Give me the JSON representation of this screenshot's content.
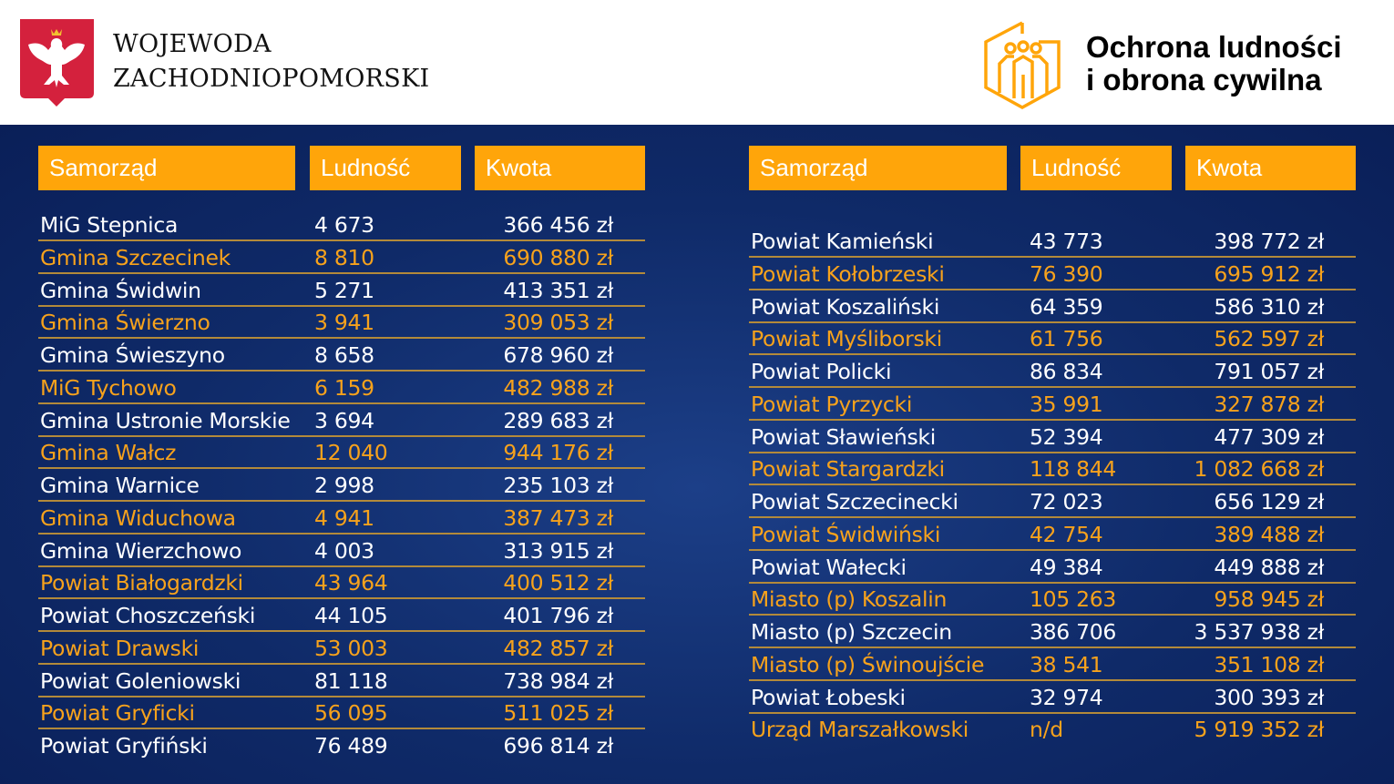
{
  "header": {
    "left_title_line1": "WOJEWODA",
    "left_title_line2": "ZACHODNIOPOMORSKI",
    "right_title_line1": "Ochrona ludności",
    "right_title_line2": "i obrona cywilna"
  },
  "columns": {
    "name": "Samorząd",
    "population": "Ludność",
    "amount": "Kwota"
  },
  "colors": {
    "accent": "#ffa50a",
    "background": "#0f2a68"
  },
  "left_table": [
    [
      "MiG Stepnica",
      "4 673",
      "366 456 zł"
    ],
    [
      "Gmina Szczecinek",
      "8 810",
      "690 880 zł"
    ],
    [
      "Gmina Świdwin",
      "5 271",
      "413 351 zł"
    ],
    [
      "Gmina Świerzno",
      "3 941",
      "309 053 zł"
    ],
    [
      "Gmina Świeszyno",
      "8 658",
      "678 960 zł"
    ],
    [
      "MiG Tychowo",
      "6 159",
      "482 988 zł"
    ],
    [
      "Gmina Ustronie Morskie",
      "3 694",
      "289 683 zł"
    ],
    [
      "Gmina Wałcz",
      "12 040",
      "944 176 zł"
    ],
    [
      "Gmina Warnice",
      "2 998",
      "235 103 zł"
    ],
    [
      "Gmina Widuchowa",
      "4 941",
      "387 473 zł"
    ],
    [
      "Gmina Wierzchowo",
      "4 003",
      "313 915 zł"
    ],
    [
      "Powiat Białogardzki",
      "43 964",
      "400 512 zł"
    ],
    [
      "Powiat Choszczeński",
      "44 105",
      "401 796 zł"
    ],
    [
      "Powiat Drawski",
      "53 003",
      "482 857 zł"
    ],
    [
      "Powiat Goleniowski",
      "81 118",
      "738 984 zł"
    ],
    [
      "Powiat Gryficki",
      "56 095",
      "511 025 zł"
    ],
    [
      "Powiat Gryfiński",
      "76 489",
      "696 814 zł"
    ]
  ],
  "right_table": [
    [
      "Powiat Kamieński",
      "43 773",
      "398 772 zł"
    ],
    [
      "Powiat Kołobrzeski",
      "76 390",
      "695 912 zł"
    ],
    [
      "Powiat Koszaliński",
      "64 359",
      "586 310 zł"
    ],
    [
      "Powiat Myśliborski",
      "61 756",
      "562 597 zł"
    ],
    [
      "Powiat Policki",
      "86 834",
      "791 057 zł"
    ],
    [
      "Powiat Pyrzycki",
      "35 991",
      "327 878 zł"
    ],
    [
      "Powiat Sławieński",
      "52 394",
      "477 309 zł"
    ],
    [
      "Powiat Stargardzki",
      "118 844",
      "1 082 668 zł"
    ],
    [
      "Powiat Szczecinecki",
      "72 023",
      "656 129 zł"
    ],
    [
      "Powiat Świdwiński",
      "42 754",
      "389 488 zł"
    ],
    [
      "Powiat Wałecki",
      "49 384",
      "449 888 zł"
    ],
    [
      "Miasto (p) Koszalin",
      "105 263",
      "958 945 zł"
    ],
    [
      "Miasto (p) Szczecin",
      "386 706",
      "3 537 938 zł"
    ],
    [
      "Miasto (p) Świnoujście",
      "38 541",
      "351 108 zł"
    ],
    [
      "Powiat Łobeski",
      "32 974",
      "300 393 zł"
    ],
    [
      "Urząd Marszałkowski",
      "n/d",
      "5 919 352 zł"
    ]
  ]
}
